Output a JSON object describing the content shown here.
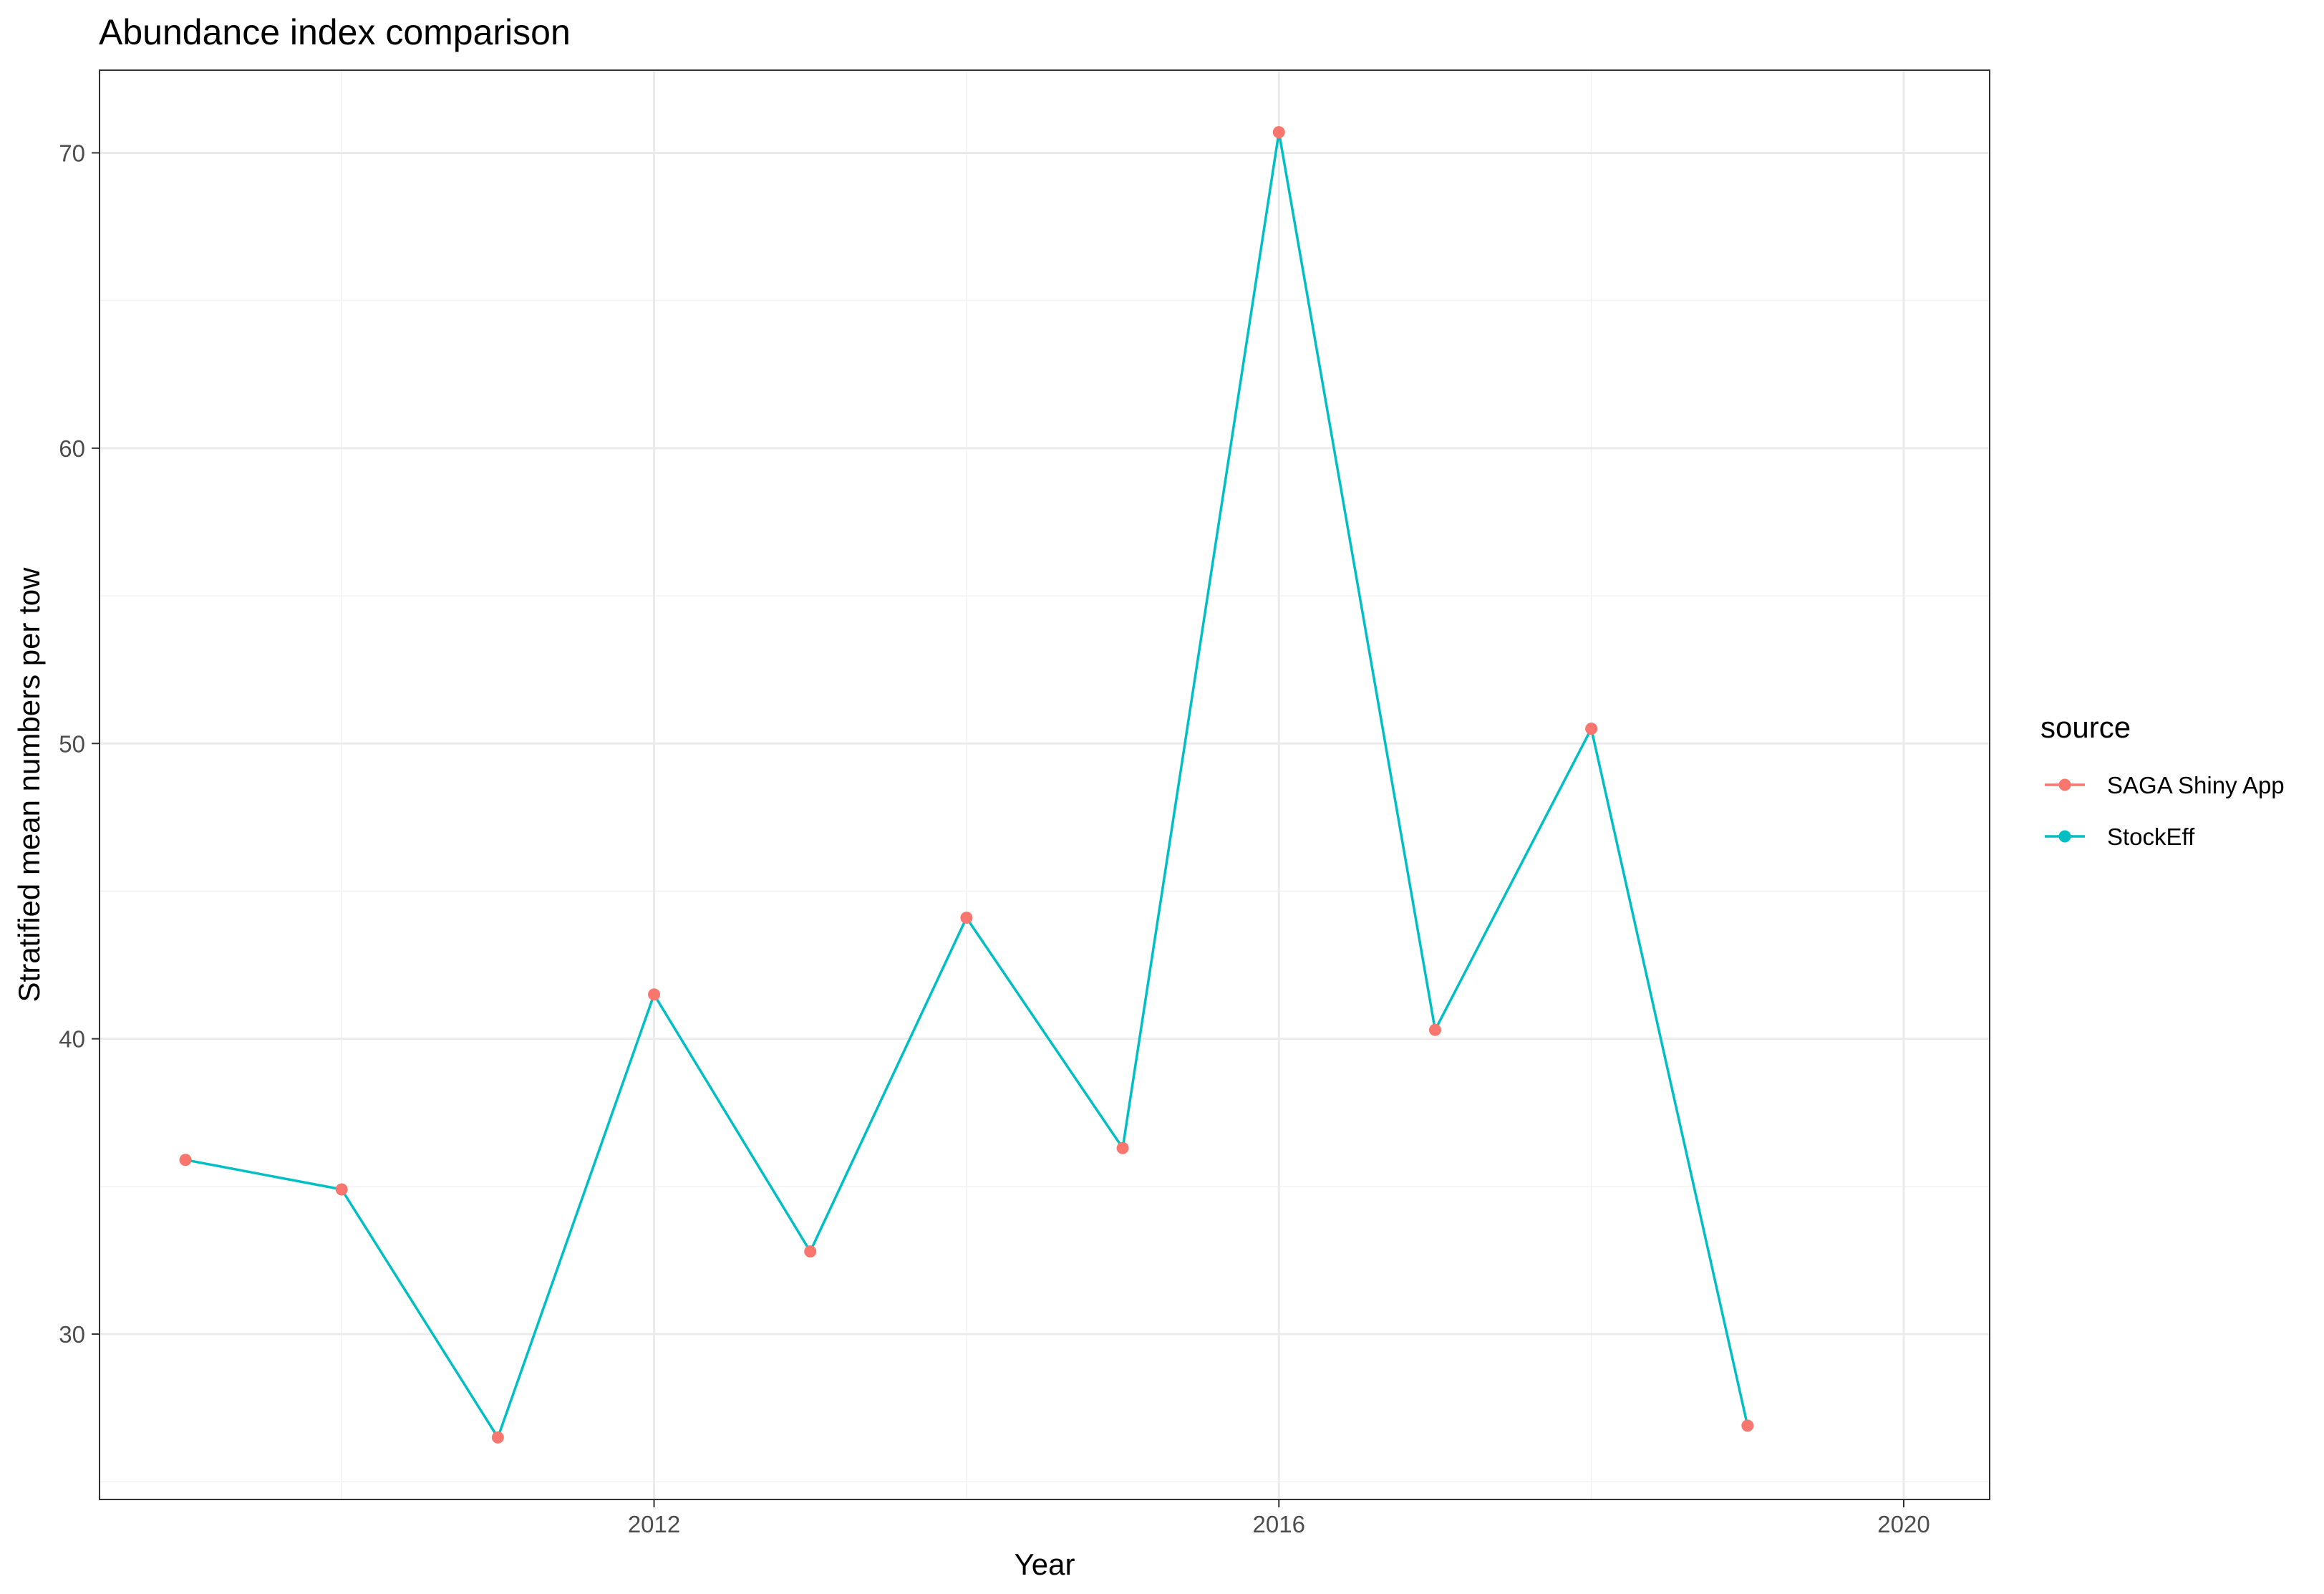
{
  "chart_data": {
    "type": "line",
    "title": "Abundance index comparison",
    "xlabel": "Year",
    "ylabel": "Stratified mean numbers per tow",
    "x": [
      2009,
      2010,
      2011,
      2012,
      2013,
      2014,
      2015,
      2016,
      2017,
      2018,
      2019
    ],
    "series": [
      {
        "name": "SAGA Shiny App",
        "color": "#F8766D",
        "mark": "point",
        "values": [
          35.9,
          34.9,
          26.5,
          41.5,
          32.8,
          44.1,
          36.3,
          70.7,
          40.3,
          50.5,
          26.9
        ]
      },
      {
        "name": "StockEff",
        "color": "#00BFC4",
        "mark": "line",
        "values": [
          35.9,
          34.9,
          26.5,
          41.5,
          32.8,
          44.1,
          36.3,
          70.7,
          40.3,
          50.5,
          26.9
        ]
      }
    ],
    "xlim": [
      2008.45,
      2020.55
    ],
    "ylim": [
      24.4,
      72.8
    ],
    "x_ticks": [
      2012,
      2016,
      2020
    ],
    "x_tick_labels": [
      "2012",
      "2016",
      "2020"
    ],
    "y_ticks": [
      30,
      40,
      50,
      60,
      70
    ],
    "y_tick_labels": [
      "30",
      "40",
      "50",
      "60",
      "70"
    ],
    "x_minor_ticks": [
      2010,
      2014,
      2018
    ],
    "y_minor_ticks": [
      25,
      35,
      45,
      55,
      65
    ],
    "grid": true,
    "legend": {
      "title": "source",
      "placement": "right"
    }
  }
}
